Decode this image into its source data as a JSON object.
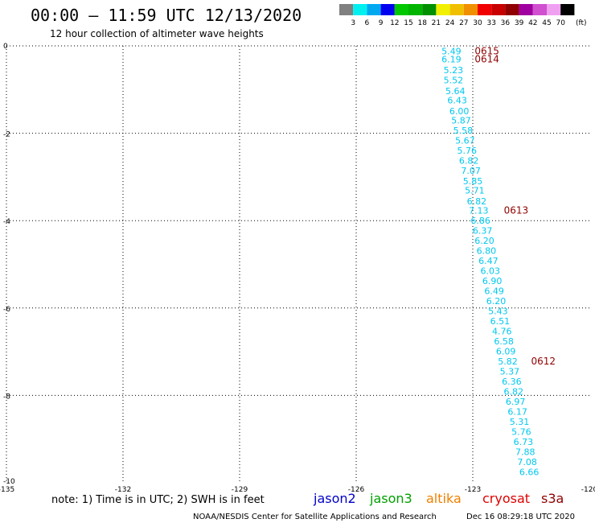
{
  "header": {
    "title": "00:00 — 11:59 UTC 12/13/2020",
    "subtitle": "12 hour collection of altimeter wave heights"
  },
  "legend": {
    "unit_label": "(ft)",
    "bins": [
      {
        "label": "3",
        "color": "#808080"
      },
      {
        "label": "6",
        "color": "#00f0f0"
      },
      {
        "label": "9",
        "color": "#00a8f0"
      },
      {
        "label": "12",
        "color": "#0000f0"
      },
      {
        "label": "15",
        "color": "#00c800"
      },
      {
        "label": "18",
        "color": "#00b400"
      },
      {
        "label": "21",
        "color": "#009000"
      },
      {
        "label": "24",
        "color": "#f0f000"
      },
      {
        "label": "27",
        "color": "#f0c000"
      },
      {
        "label": "30",
        "color": "#f09000"
      },
      {
        "label": "33",
        "color": "#f00000"
      },
      {
        "label": "36",
        "color": "#c80000"
      },
      {
        "label": "39",
        "color": "#900000"
      },
      {
        "label": "42",
        "color": "#a000a0"
      },
      {
        "label": "45",
        "color": "#d050d0"
      },
      {
        "label": "70",
        "color": "#f0a0f0"
      },
      {
        "label": "",
        "color": "#000000"
      }
    ]
  },
  "footer": {
    "note": "note: 1) Time is in UTC; 2) SWH is in feet",
    "credit": "NOAA/NESDIS Center for Satellite Applications and Research",
    "timestamp": "Dec 16 08:29:18 UTC 2020",
    "satellites": [
      {
        "name": "jason2",
        "color": "#0000c8"
      },
      {
        "name": "jason3",
        "color": "#00a000"
      },
      {
        "name": "altika",
        "color": "#f08000"
      },
      {
        "name": "cryosat",
        "color": "#e00000"
      },
      {
        "name": "s3a",
        "color": "#900000"
      }
    ]
  },
  "chart_data": {
    "type": "scatter",
    "title": "00:00 — 11:59 UTC 12/13/2020",
    "subtitle": "12 hour collection of altimeter wave heights",
    "xlim": [
      -135,
      -120
    ],
    "ylim": [
      -10,
      0
    ],
    "x_ticks": [
      {
        "value": -135,
        "label": "-135"
      },
      {
        "value": -132,
        "label": "-132"
      },
      {
        "value": -129,
        "label": "-129"
      },
      {
        "value": -126,
        "label": "-126"
      },
      {
        "value": -123,
        "label": "-123"
      },
      {
        "value": -120,
        "label": "-120"
      }
    ],
    "y_ticks": [
      {
        "value": 0,
        "label": "0"
      },
      {
        "value": -2,
        "label": "-2"
      },
      {
        "value": -4,
        "label": "-4"
      },
      {
        "value": -6,
        "label": "-6"
      },
      {
        "value": -8,
        "label": "-8"
      },
      {
        "value": -10,
        "label": "-10"
      }
    ],
    "grid": true,
    "observation_color": "#00c8f0",
    "time_label_color": "#900000",
    "observations": [
      {
        "x": -123.55,
        "y": -0.12,
        "label": "5.49"
      },
      {
        "x": -123.55,
        "y": -0.3,
        "label": "6.19"
      },
      {
        "x": -123.5,
        "y": -0.55,
        "label": "5.23"
      },
      {
        "x": -123.5,
        "y": -0.78,
        "label": "5.52"
      },
      {
        "x": -123.45,
        "y": -1.03,
        "label": "5.64"
      },
      {
        "x": -123.4,
        "y": -1.24,
        "label": "6.43"
      },
      {
        "x": -123.35,
        "y": -1.49,
        "label": "6.00"
      },
      {
        "x": -123.3,
        "y": -1.7,
        "label": "5.87"
      },
      {
        "x": -123.25,
        "y": -1.93,
        "label": "5.58"
      },
      {
        "x": -123.2,
        "y": -2.16,
        "label": "5.67"
      },
      {
        "x": -123.15,
        "y": -2.39,
        "label": "5.76"
      },
      {
        "x": -123.1,
        "y": -2.62,
        "label": "6.82"
      },
      {
        "x": -123.05,
        "y": -2.85,
        "label": "7.07"
      },
      {
        "x": -123.0,
        "y": -3.09,
        "label": "5.85"
      },
      {
        "x": -122.95,
        "y": -3.31,
        "label": "5.71"
      },
      {
        "x": -122.9,
        "y": -3.55,
        "label": "6.82"
      },
      {
        "x": -122.85,
        "y": -3.77,
        "label": "7.13"
      },
      {
        "x": -122.8,
        "y": -4.0,
        "label": "6.86"
      },
      {
        "x": -122.75,
        "y": -4.23,
        "label": "6.37"
      },
      {
        "x": -122.7,
        "y": -4.46,
        "label": "6.20"
      },
      {
        "x": -122.65,
        "y": -4.69,
        "label": "6.80"
      },
      {
        "x": -122.6,
        "y": -4.92,
        "label": "6.47"
      },
      {
        "x": -122.55,
        "y": -5.15,
        "label": "6.03"
      },
      {
        "x": -122.5,
        "y": -5.38,
        "label": "6.90"
      },
      {
        "x": -122.45,
        "y": -5.61,
        "label": "6.49"
      },
      {
        "x": -122.4,
        "y": -5.84,
        "label": "6.20"
      },
      {
        "x": -122.35,
        "y": -6.07,
        "label": "5.43"
      },
      {
        "x": -122.3,
        "y": -6.3,
        "label": "6.51"
      },
      {
        "x": -122.25,
        "y": -6.53,
        "label": "4.76"
      },
      {
        "x": -122.2,
        "y": -6.76,
        "label": "6.58"
      },
      {
        "x": -122.15,
        "y": -6.99,
        "label": "6.09"
      },
      {
        "x": -122.1,
        "y": -7.22,
        "label": "5.82"
      },
      {
        "x": -122.05,
        "y": -7.45,
        "label": "5.37"
      },
      {
        "x": -122.0,
        "y": -7.68,
        "label": "6.36"
      },
      {
        "x": -121.95,
        "y": -7.91,
        "label": "6.82"
      },
      {
        "x": -121.9,
        "y": -8.14,
        "label": "6.97"
      },
      {
        "x": -121.85,
        "y": -8.37,
        "label": "6.17"
      },
      {
        "x": -121.8,
        "y": -8.6,
        "label": "5.31"
      },
      {
        "x": -121.75,
        "y": -8.83,
        "label": "5.76"
      },
      {
        "x": -121.7,
        "y": -9.06,
        "label": "6.73"
      },
      {
        "x": -121.65,
        "y": -9.29,
        "label": "7.88"
      },
      {
        "x": -121.6,
        "y": -9.52,
        "label": "7.08"
      },
      {
        "x": -121.55,
        "y": -9.75,
        "label": "6.66"
      }
    ],
    "time_labels": [
      {
        "x": -122.95,
        "y": -0.12,
        "label": "0615"
      },
      {
        "x": -122.95,
        "y": -0.3,
        "label": "0614"
      },
      {
        "x": -122.2,
        "y": -3.77,
        "label": "0613"
      },
      {
        "x": -121.5,
        "y": -7.22,
        "label": "0612"
      }
    ]
  }
}
